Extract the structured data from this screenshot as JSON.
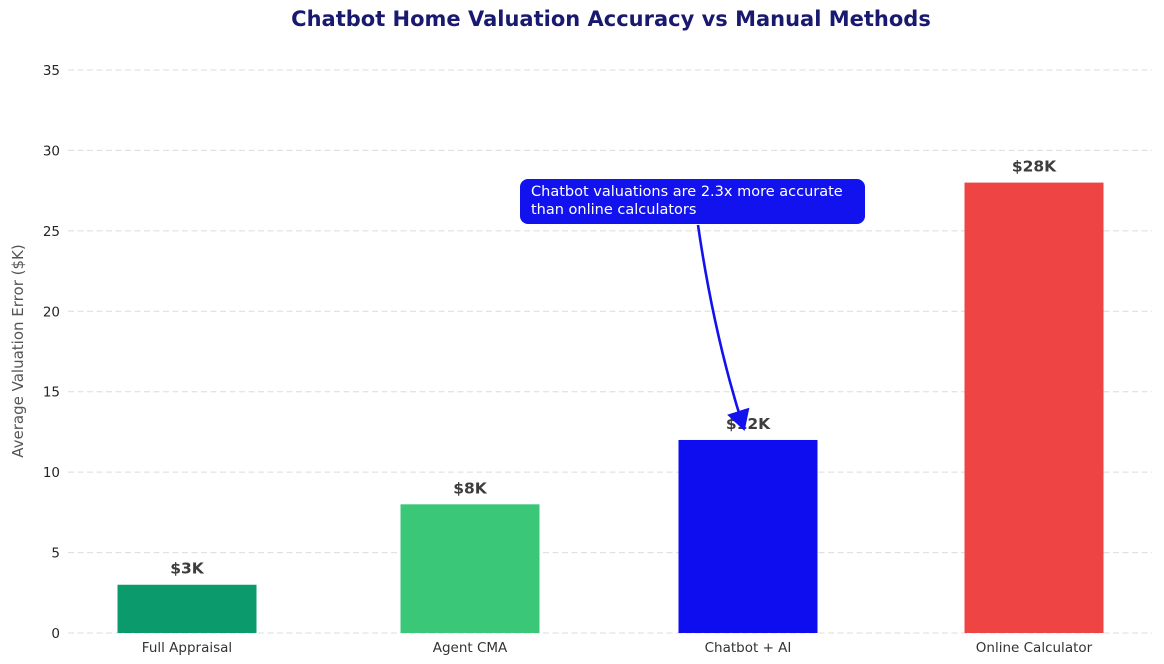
{
  "chart_data": {
    "type": "bar",
    "title": "Chatbot Home Valuation Accuracy vs Manual Methods",
    "ylabel": "Average Valuation Error ($K)",
    "xlabel": "",
    "categories": [
      "Full Appraisal",
      "Agent CMA",
      "Chatbot + AI",
      "Online Calculator"
    ],
    "values": [
      3,
      8,
      12,
      28
    ],
    "value_labels": [
      "$3K",
      "$8K",
      "$12K",
      "$28K"
    ],
    "bar_colors": [
      "#0b9a6c",
      "#3ac878",
      "#0d0df0",
      "#ef4444"
    ],
    "ylim": [
      0,
      35
    ],
    "yticks": [
      0,
      5,
      10,
      15,
      20,
      25,
      30,
      35
    ],
    "grid": true,
    "grid_style": "dashed",
    "legend": "none",
    "annotation": {
      "line1": "Chatbot valuations are 2.3x more accurate",
      "line2": "than online calculators",
      "bg_color": "#1212ee",
      "text_color": "#ffffff",
      "arrow_color": "#1212ee",
      "target_category": "Chatbot + AI"
    },
    "colors": {
      "title": "#191970",
      "ytick_labels": "#262626",
      "xtick_labels": "#333333",
      "value_labels": "#3d3d3d",
      "axis_label": "#555555",
      "gridline": "#dcdcdc",
      "background": "#ffffff"
    }
  }
}
